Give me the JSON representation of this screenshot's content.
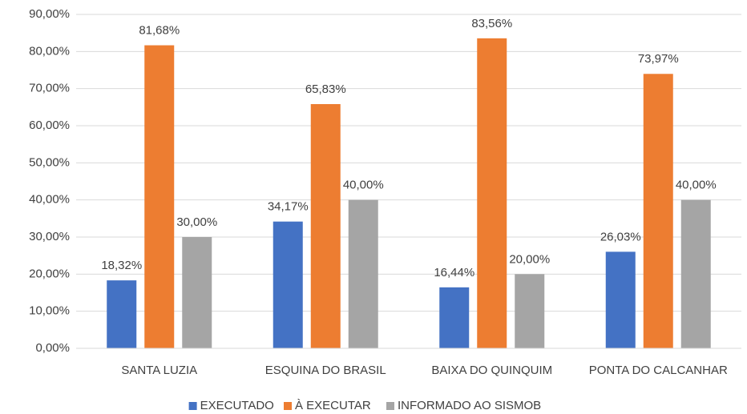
{
  "chart_data": {
    "type": "bar",
    "categories": [
      "SANTA LUZIA",
      "ESQUINA DO BRASIL",
      "BAIXA DO QUINQUIM",
      "PONTA DO CALCANHAR"
    ],
    "series": [
      {
        "name": "EXECUTADO",
        "color": "#4472c4",
        "values": [
          18.32,
          34.17,
          16.44,
          26.03
        ],
        "value_labels": [
          "18,32%",
          "34,17%",
          "16,44%",
          "26,03%"
        ]
      },
      {
        "name": "À EXECUTAR",
        "color": "#ed7d31",
        "values": [
          81.68,
          65.83,
          83.56,
          73.97
        ],
        "value_labels": [
          "81,68%",
          "65,83%",
          "83,56%",
          "73,97%"
        ]
      },
      {
        "name": "INFORMADO AO SISMOB",
        "color": "#a5a5a5",
        "values": [
          30,
          40,
          20,
          40
        ],
        "value_labels": [
          "30,00%",
          "40,00%",
          "20,00%",
          "40,00%"
        ]
      }
    ],
    "ylim": [
      0,
      90
    ],
    "yticks": [
      {
        "value": 0,
        "label": "0,00%"
      },
      {
        "value": 10,
        "label": "10,00%"
      },
      {
        "value": 20,
        "label": "20,00%"
      },
      {
        "value": 30,
        "label": "30,00%"
      },
      {
        "value": 40,
        "label": "40,00%"
      },
      {
        "value": 50,
        "label": "50,00%"
      },
      {
        "value": 60,
        "label": "60,00%"
      },
      {
        "value": 70,
        "label": "70,00%"
      },
      {
        "value": 80,
        "label": "80,00%"
      },
      {
        "value": 90,
        "label": "90,00%"
      }
    ],
    "grid": true,
    "legend": "bottom"
  }
}
